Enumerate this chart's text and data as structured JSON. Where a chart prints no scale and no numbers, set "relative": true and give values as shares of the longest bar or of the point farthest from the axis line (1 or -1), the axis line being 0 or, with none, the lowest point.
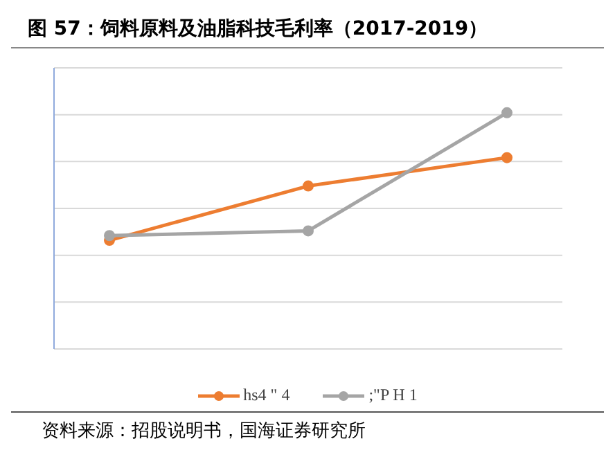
{
  "chart_data": {
    "type": "line",
    "title": "图 57：饲料原料及油脂科技毛利率（2017-2019）",
    "categories": [
      null,
      null,
      null
    ],
    "relative": true,
    "series": [
      {
        "name": "hs4 \" 4",
        "color": "#ed7d31",
        "values": [
          0.46,
          0.69,
          0.81
        ]
      },
      {
        "name": ";\"P H 1",
        "color": "#a5a5a5",
        "values": [
          0.48,
          0.5,
          1
        ]
      }
    ],
    "marker": "circle",
    "grid": "y",
    "legend": "bottom",
    "annotations": [
      "资料来源：招股说明书，国海证券研究所"
    ]
  }
}
